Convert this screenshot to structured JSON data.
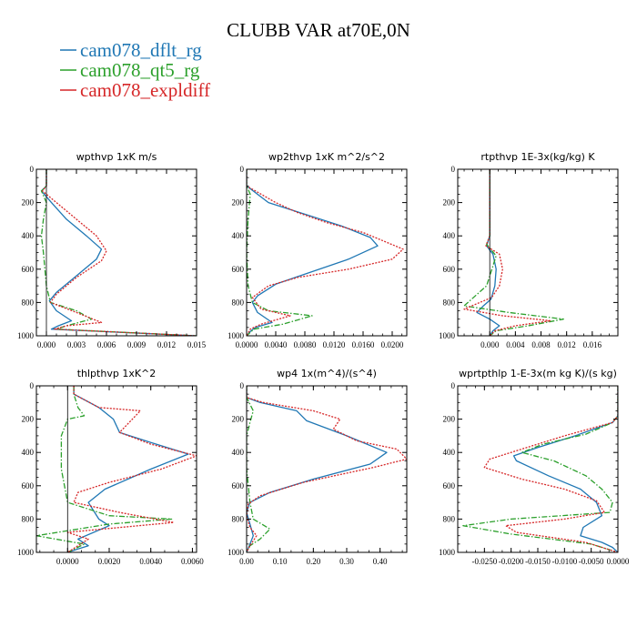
{
  "figure": {
    "title": "CLUBB VAR at70E,0N",
    "legend": [
      {
        "label": "cam078_dflt_rg",
        "color": "#1f77b4",
        "dash": "solid"
      },
      {
        "label": "cam078_qt5_rg",
        "color": "#2ca02c",
        "dash": "dashdot"
      },
      {
        "label": "cam078_expldiff",
        "color": "#d62728",
        "dash": "dotted"
      }
    ]
  },
  "chart_data": [
    {
      "type": "line",
      "title": "wpthvp  1xK m/s",
      "xlim": [
        -0.001,
        0.015
      ],
      "ylim": [
        1000,
        0
      ],
      "xticks": [
        0.0,
        0.003,
        0.006,
        0.009,
        0.012,
        0.015
      ],
      "xticklabels": [
        "0.000",
        "0.003",
        "0.006",
        "0.009",
        "0.012",
        "0.015"
      ],
      "yticks": [
        0,
        200,
        400,
        600,
        800,
        1000
      ],
      "yticklabels": [
        "0",
        "200",
        "400",
        "600",
        "800",
        "1000"
      ],
      "series": [
        {
          "name": "cam078_dflt_rg",
          "x": [
            0,
            0,
            -0.0005,
            0.0005,
            0.002,
            0.004,
            0.0055,
            0.005,
            0.003,
            0.001,
            0.0003,
            0.001,
            0.0025,
            0.0012,
            0.0005,
            0.015
          ],
          "y": [
            0,
            100,
            130,
            200,
            300,
            400,
            480,
            540,
            640,
            740,
            790,
            850,
            910,
            940,
            960,
            1000
          ]
        },
        {
          "name": "cam078_qt5_rg",
          "x": [
            0,
            0,
            -0.0005,
            0.0,
            -0.0003,
            -0.0005,
            -0.0003,
            0.0,
            0.0004,
            0.003,
            0.0045,
            0.002,
            0.001,
            0.015
          ],
          "y": [
            0,
            100,
            130,
            200,
            300,
            400,
            500,
            700,
            800,
            850,
            900,
            940,
            960,
            1000
          ]
        },
        {
          "name": "cam078_expldiff",
          "x": [
            0,
            0,
            -0.0004,
            0.001,
            0.003,
            0.005,
            0.006,
            0.0055,
            0.003,
            0.001,
            0.0004,
            0.003,
            0.0055,
            0.002,
            0.0008,
            0.015
          ],
          "y": [
            0,
            100,
            130,
            200,
            300,
            400,
            490,
            550,
            650,
            750,
            800,
            860,
            920,
            940,
            960,
            1000
          ]
        }
      ]
    },
    {
      "type": "line",
      "title": "wp2thvp  1xK m^2/s^2",
      "xlim": [
        0.0,
        0.022
      ],
      "ylim": [
        1000,
        0
      ],
      "xticks": [
        0.0,
        0.004,
        0.008,
        0.012,
        0.016,
        0.02
      ],
      "xticklabels": [
        "0.0000",
        "0.0040",
        "0.0080",
        "0.0120",
        "0.0160",
        "0.0200"
      ],
      "yticks": [
        0,
        200,
        400,
        600,
        800,
        1000
      ],
      "yticklabels": [
        "0",
        "200",
        "400",
        "600",
        "800",
        "1000"
      ],
      "series": [
        {
          "name": "cam078_dflt_rg",
          "x": [
            0,
            0,
            0.003,
            0.008,
            0.013,
            0.017,
            0.018,
            0.014,
            0.008,
            0.004,
            0.0015,
            0.0008,
            0.0015,
            0.0035,
            0.0012,
            0.0006,
            0.0
          ],
          "y": [
            0,
            100,
            200,
            270,
            340,
            410,
            460,
            540,
            630,
            690,
            760,
            800,
            860,
            920,
            950,
            970,
            1000
          ]
        },
        {
          "name": "cam078_qt5_rg",
          "x": [
            0,
            0,
            0.0005,
            0.0002,
            0.0,
            0.0002,
            0.0008,
            0.003,
            0.009,
            0.005,
            0.001,
            0.0
          ],
          "y": [
            0,
            100,
            150,
            300,
            500,
            700,
            800,
            850,
            880,
            930,
            960,
            1000
          ]
        },
        {
          "name": "cam078_expldiff",
          "x": [
            0,
            0,
            0.004,
            0.007,
            0.011,
            0.016,
            0.0215,
            0.02,
            0.014,
            0.007,
            0.003,
            0.0008,
            0.002,
            0.006,
            0.002,
            0.0005,
            0.0
          ],
          "y": [
            0,
            100,
            200,
            260,
            320,
            380,
            480,
            540,
            600,
            650,
            700,
            770,
            840,
            880,
            930,
            960,
            1000
          ]
        }
      ]
    },
    {
      "type": "line",
      "title": "rtpthvp  1E-3x(kg/kg) K",
      "xlim": [
        -0.005,
        0.02
      ],
      "ylim": [
        1000,
        0
      ],
      "xticks": [
        0.0,
        0.004,
        0.008,
        0.012,
        0.016
      ],
      "xticklabels": [
        "0.000",
        "0.004",
        "0.008",
        "0.012",
        "0.016"
      ],
      "yticks": [
        0,
        200,
        400,
        600,
        800,
        1000
      ],
      "yticklabels": [
        "0",
        "200",
        "400",
        "600",
        "800",
        "1000"
      ],
      "series": [
        {
          "name": "cam078_dflt_rg",
          "x": [
            0,
            0,
            0,
            -0.0005,
            0.0005,
            0.001,
            0.0008,
            0.0002,
            -0.001,
            -0.002,
            0.0,
            0.0015,
            0.0005,
            0.0
          ],
          "y": [
            0,
            300,
            400,
            460,
            510,
            600,
            700,
            780,
            820,
            860,
            900,
            940,
            970,
            1000
          ]
        },
        {
          "name": "cam078_qt5_rg",
          "x": [
            0,
            0,
            0,
            -0.0005,
            0.001,
            -0.0005,
            -0.004,
            0.003,
            0.0115,
            0.006,
            0.001,
            0.0
          ],
          "y": [
            0,
            300,
            400,
            450,
            520,
            700,
            820,
            860,
            900,
            940,
            970,
            1000
          ]
        },
        {
          "name": "cam078_expldiff",
          "x": [
            0,
            0,
            0,
            -0.0006,
            0.0015,
            0.002,
            0.0015,
            0.0003,
            -0.004,
            0.002,
            0.0095,
            0.004,
            0.0008,
            0.0
          ],
          "y": [
            0,
            300,
            400,
            460,
            510,
            600,
            700,
            770,
            840,
            880,
            910,
            940,
            970,
            1000
          ]
        }
      ]
    },
    {
      "type": "line",
      "title": "thlpthvp  1xK^2",
      "xlim": [
        -0.0015,
        0.0062
      ],
      "ylim": [
        1000,
        0
      ],
      "xticks": [
        0.0,
        0.002,
        0.004,
        0.006
      ],
      "xticklabels": [
        "0.0000",
        "0.0020",
        "0.0040",
        "0.0060"
      ],
      "yticks": [
        0,
        200,
        400,
        600,
        800,
        1000
      ],
      "yticklabels": [
        "0",
        "200",
        "400",
        "600",
        "800",
        "1000"
      ],
      "series": [
        {
          "name": "cam078_dflt_rg",
          "x": [
            0.0003,
            0.0003,
            0.0015,
            0.0022,
            0.0025,
            0.004,
            0.0058,
            0.004,
            0.0018,
            0.001,
            0.0015,
            0.002,
            0.0005,
            0.001,
            0.0005,
            0.0
          ],
          "y": [
            0,
            50,
            130,
            200,
            280,
            340,
            410,
            500,
            620,
            700,
            800,
            840,
            920,
            960,
            980,
            1000
          ]
        },
        {
          "name": "cam078_qt5_rg",
          "x": [
            0.0003,
            0.0003,
            0.0005,
            0.0008,
            0.0,
            -0.0003,
            -0.0003,
            0.0,
            0.002,
            0.005,
            0.002,
            -0.0015,
            0.0008,
            0.0
          ],
          "y": [
            0,
            50,
            130,
            180,
            200,
            300,
            500,
            700,
            780,
            800,
            830,
            900,
            950,
            1000
          ]
        },
        {
          "name": "cam078_expldiff",
          "x": [
            0.0003,
            0.0003,
            0.0015,
            0.0035,
            0.0025,
            0.004,
            0.0062,
            0.0045,
            0.002,
            0.0005,
            0.0003,
            0.0025,
            0.0051,
            0.0,
            0.001,
            0.0005,
            0.0
          ],
          "y": [
            0,
            50,
            130,
            150,
            280,
            350,
            420,
            500,
            580,
            640,
            700,
            760,
            820,
            880,
            920,
            960,
            1000
          ]
        }
      ]
    },
    {
      "type": "line",
      "title": "wp4  1x(m^4)/(s^4)",
      "xlim": [
        0.0,
        0.48
      ],
      "ylim": [
        1000,
        0
      ],
      "xticks": [
        0.0,
        0.1,
        0.2,
        0.3,
        0.4
      ],
      "xticklabels": [
        "0.00",
        "0.10",
        "0.20",
        "0.30",
        "0.40"
      ],
      "yticks": [
        0,
        200,
        400,
        600,
        800,
        1000
      ],
      "yticklabels": [
        "0",
        "200",
        "400",
        "600",
        "800",
        "1000"
      ],
      "series": [
        {
          "name": "cam078_dflt_rg",
          "x": [
            0,
            0,
            0.04,
            0.15,
            0.18,
            0.3,
            0.42,
            0.37,
            0.2,
            0.07,
            0.01,
            0.0,
            0.01,
            0.02,
            0.01,
            0.0
          ],
          "y": [
            0,
            70,
            100,
            150,
            210,
            300,
            400,
            470,
            560,
            640,
            700,
            760,
            830,
            900,
            950,
            1000
          ]
        },
        {
          "name": "cam078_qt5_rg",
          "x": [
            0,
            0,
            0.02,
            0.01,
            0.0,
            0.0,
            0.01,
            0.02,
            0.07,
            0.04,
            0.01,
            0.0
          ],
          "y": [
            0,
            70,
            150,
            220,
            300,
            500,
            700,
            800,
            860,
            920,
            960,
            1000
          ]
        },
        {
          "name": "cam078_expldiff",
          "x": [
            0,
            0,
            0.05,
            0.2,
            0.28,
            0.26,
            0.33,
            0.45,
            0.48,
            0.38,
            0.17,
            0.04,
            0.005,
            0.0,
            0.01,
            0.03,
            0.01,
            0.0
          ],
          "y": [
            0,
            70,
            100,
            150,
            200,
            260,
            330,
            380,
            440,
            490,
            580,
            660,
            710,
            780,
            850,
            900,
            960,
            1000
          ]
        }
      ]
    },
    {
      "type": "line",
      "title": "wprtpthlp  1-E-3x(m kg K)/(s kg)",
      "xlim": [
        -0.03,
        0.0
      ],
      "ylim": [
        1000,
        0
      ],
      "xticks": [
        -0.025,
        -0.02,
        -0.015,
        -0.01,
        -0.005,
        0.0
      ],
      "xticklabels": [
        "-0.0250",
        "-0.0200",
        "-0.0150",
        "-0.0100",
        "-0.0050",
        "0.0000"
      ],
      "yticks": [
        0,
        200,
        400,
        600,
        800,
        1000
      ],
      "yticklabels": [
        "0",
        "200",
        "400",
        "600",
        "800",
        "1000"
      ],
      "series": [
        {
          "name": "cam078_dflt_rg",
          "x": [
            0,
            0,
            -0.001,
            -0.008,
            -0.015,
            -0.0195,
            -0.019,
            -0.013,
            -0.007,
            -0.004,
            -0.003,
            -0.0065,
            -0.007,
            -0.003,
            -0.001,
            0.0
          ],
          "y": [
            0,
            180,
            220,
            300,
            370,
            420,
            450,
            540,
            620,
            700,
            780,
            850,
            900,
            940,
            970,
            1000
          ]
        },
        {
          "name": "cam078_qt5_rg",
          "x": [
            0,
            0,
            -0.001,
            -0.006,
            -0.014,
            -0.018,
            -0.012,
            -0.006,
            -0.003,
            -0.001,
            -0.0015,
            -0.02,
            -0.029,
            -0.02,
            -0.005,
            0.0
          ],
          "y": [
            0,
            180,
            220,
            290,
            350,
            400,
            450,
            540,
            620,
            700,
            760,
            800,
            840,
            890,
            950,
            1000
          ]
        },
        {
          "name": "cam078_expldiff",
          "x": [
            0,
            0,
            -0.001,
            -0.01,
            -0.018,
            -0.024,
            -0.025,
            -0.018,
            -0.01,
            -0.004,
            -0.0025,
            -0.01,
            -0.021,
            -0.019,
            -0.006,
            0.0
          ],
          "y": [
            0,
            180,
            220,
            300,
            380,
            440,
            490,
            560,
            620,
            690,
            760,
            800,
            840,
            880,
            940,
            1000
          ]
        }
      ]
    }
  ]
}
